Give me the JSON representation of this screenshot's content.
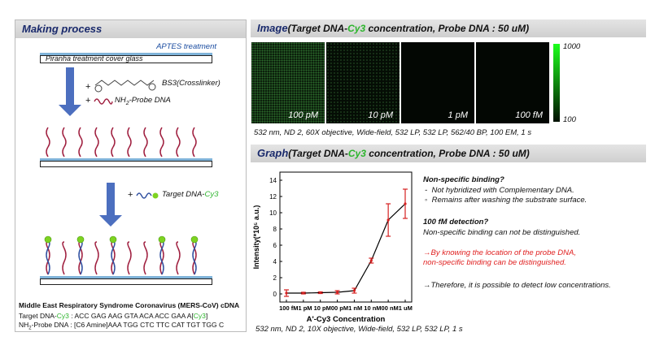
{
  "left": {
    "title": "Making process",
    "aptes": "APTES treatment",
    "piranha": "Piranha treatment cover glass",
    "bs3": "BS3(Crosslinker)",
    "probe_plus": "+",
    "probe_label_prefix": "NH",
    "probe_label_sub": "2",
    "probe_label_suffix": "-Probe DNA",
    "target_plus": "+",
    "target_prefix": "Target DNA-",
    "target_cy3": "Cy3",
    "mers_title": "Middle East Respiratory Syndrome Coronavirus (MERS-CoV) cDNA",
    "target_seq_prefix": "Target DNA-",
    "target_seq_cy3": "Cy3",
    "target_seq_rest": " : ACC GAG AAG GTA ACA ACC GAA A[",
    "target_seq_cy3b": "Cy3",
    "target_seq_end": "]",
    "probe_seq_prefix": "NH",
    "probe_seq_sub": "2",
    "probe_seq_rest": "-Probe DNA : [C6 Amine]AAA TGG CTC TTC CAT TGT TGG C"
  },
  "image_section": {
    "title_main": "Image",
    "title_a": "(Target DNA-",
    "title_cy3": "Cy3",
    "title_b": " concentration, Probe DNA : 50 uM)",
    "panels": [
      "100 pM",
      "10 pM",
      "1 pM",
      "100 fM"
    ],
    "scale_max": "1000",
    "scale_min": "100",
    "caption": "532 nm, ND 2, 60X objective, Wide-field, 532 LP, 532 LP, 562/40 BP, 100 EM, 1 s"
  },
  "graph_section": {
    "title_main": "Graph",
    "title_a": "(Target DNA-",
    "title_cy3": "Cy3",
    "title_b": " concentration, Probe DNA : 50 uM)",
    "caption": "532 nm, ND 2, 10X objective, Wide-field, 532 LP, 532 LP, 1 s"
  },
  "notes": {
    "q1": "Non-specific binding?",
    "b1": "Not hybridized with Complementary DNA.",
    "b2": "Remains after washing the substrate surface.",
    "q2": "100 fM detection?",
    "t2": "Non-specific binding can not be distinguished.",
    "red1": "→By knowing the location of the probe DNA,",
    "red2": "non-specific binding can be distinguished.",
    "last": "→Therefore, it is possible to detect low concentrations."
  },
  "chart_data": {
    "type": "line",
    "categories": [
      "100 fM",
      "1 pM",
      "10 pM",
      "100 pM",
      "1 nM",
      "10 nM",
      "100 nM",
      "1 uM"
    ],
    "x_tick_text": "100 fM1 pM 10 pM00 pM1 nM 10 nM00 nM1 uM",
    "values": [
      0.1,
      0.1,
      0.15,
      0.2,
      0.4,
      4.1,
      9.1,
      11.1
    ],
    "errors": [
      0.4,
      0.1,
      0.1,
      0.2,
      0.3,
      0.3,
      2.0,
      1.8
    ],
    "xlabel": "A'-Cy3 Concentration",
    "ylabel": "Intensity(*10⁵ a.u.)",
    "ylim": [
      -1,
      15
    ],
    "yticks": [
      0,
      2,
      4,
      6,
      8,
      10,
      12,
      14
    ],
    "line_color": "#000000",
    "error_color": "#d62020"
  }
}
